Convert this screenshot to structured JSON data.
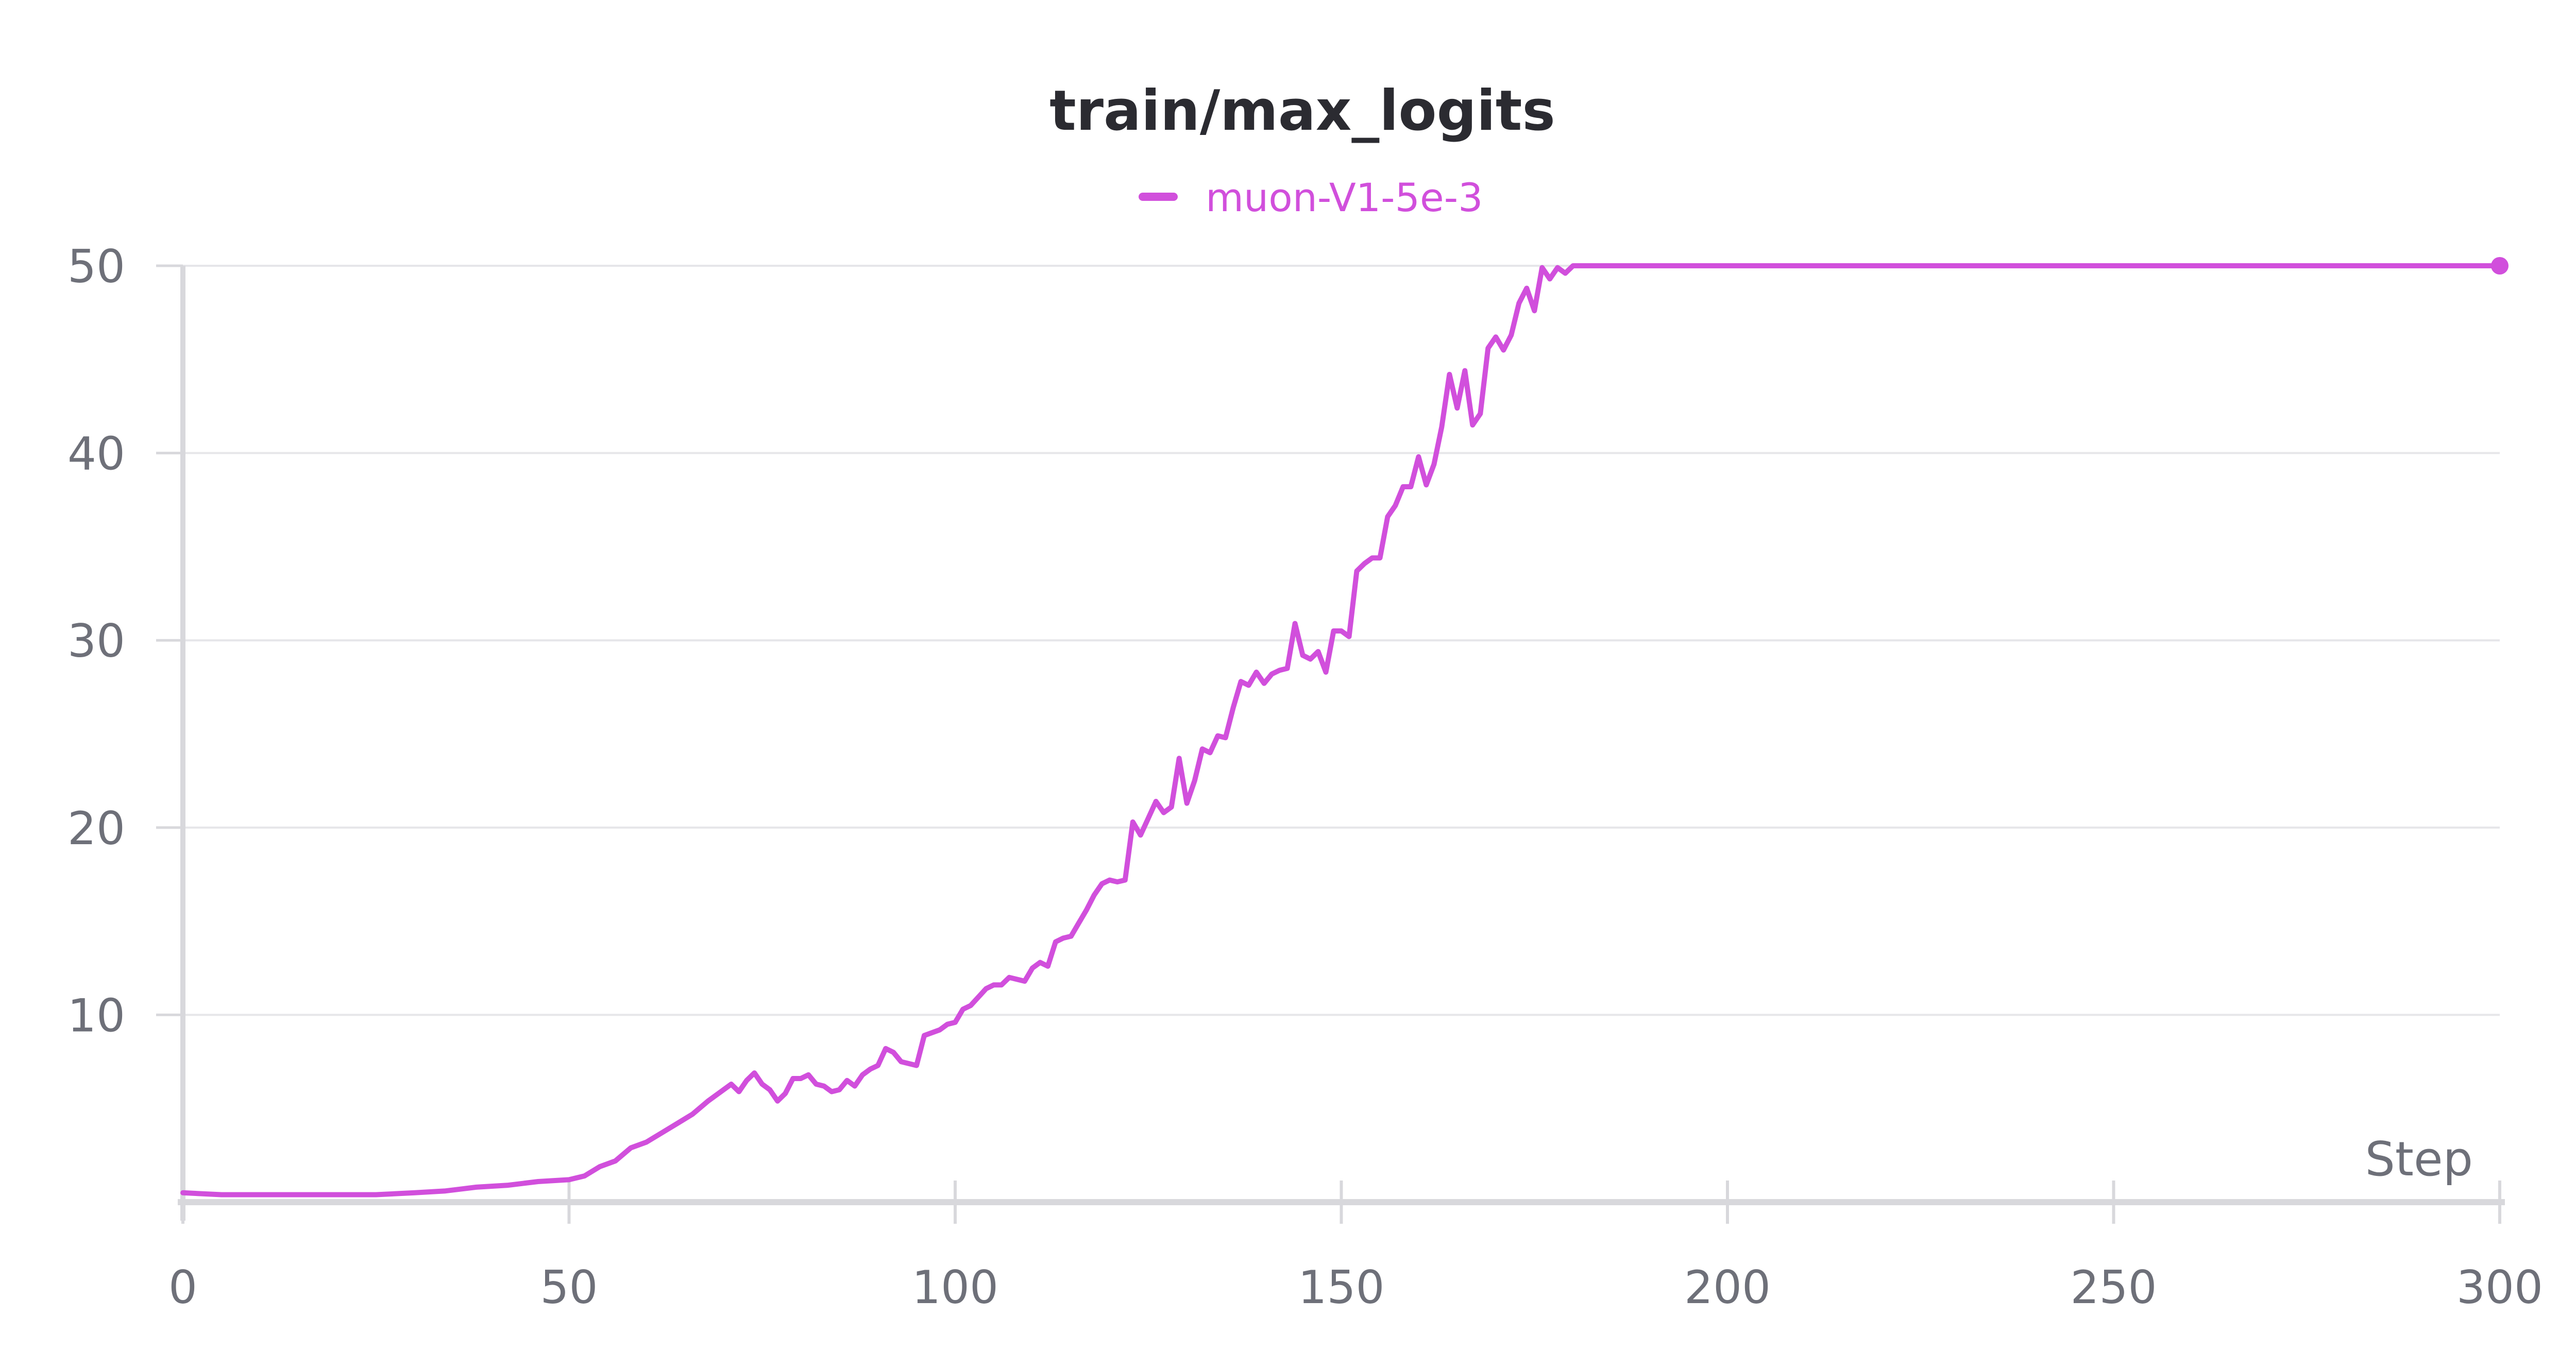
{
  "chart_data": {
    "type": "line",
    "title": "train/max_logits",
    "xlabel": "Step",
    "ylabel": "",
    "xlim": [
      0,
      300
    ],
    "ylim": [
      0,
      50
    ],
    "x_ticks": [
      "0",
      "50",
      "100",
      "150",
      "200",
      "250",
      "300"
    ],
    "y_ticks": [
      "10",
      "20",
      "30",
      "40",
      "50"
    ],
    "grid": "horizontal",
    "legend_position": "top-center",
    "colors": {
      "series": "#d14fdc",
      "grid": "#e6e6e9",
      "axis": "#d8d8dc",
      "text": "#6e7079",
      "title": "#2b2b31"
    },
    "series": [
      {
        "name": "muon-V1-5e-3",
        "points": [
          [
            0,
            0.5
          ],
          [
            5,
            0.4
          ],
          [
            10,
            0.4
          ],
          [
            15,
            0.4
          ],
          [
            20,
            0.4
          ],
          [
            25,
            0.4
          ],
          [
            30,
            0.5
          ],
          [
            34,
            0.6
          ],
          [
            38,
            0.8
          ],
          [
            42,
            0.9
          ],
          [
            46,
            1.1
          ],
          [
            50,
            1.2
          ],
          [
            52,
            1.4
          ],
          [
            54,
            1.9
          ],
          [
            56,
            2.2
          ],
          [
            58,
            2.9
          ],
          [
            60,
            3.2
          ],
          [
            62,
            3.7
          ],
          [
            64,
            4.2
          ],
          [
            66,
            4.7
          ],
          [
            68,
            5.4
          ],
          [
            70,
            6.0
          ],
          [
            71,
            6.3
          ],
          [
            72,
            5.9
          ],
          [
            73,
            6.5
          ],
          [
            74,
            6.9
          ],
          [
            75,
            6.3
          ],
          [
            76,
            6.0
          ],
          [
            77,
            5.4
          ],
          [
            78,
            5.8
          ],
          [
            79,
            6.6
          ],
          [
            80,
            6.6
          ],
          [
            81,
            6.8
          ],
          [
            82,
            6.3
          ],
          [
            83,
            6.2
          ],
          [
            84,
            5.9
          ],
          [
            85,
            6.0
          ],
          [
            86,
            6.5
          ],
          [
            87,
            6.2
          ],
          [
            88,
            6.8
          ],
          [
            89,
            7.1
          ],
          [
            90,
            7.3
          ],
          [
            91,
            8.2
          ],
          [
            92,
            8.0
          ],
          [
            93,
            7.5
          ],
          [
            95,
            7.3
          ],
          [
            96,
            8.9
          ],
          [
            98,
            9.2
          ],
          [
            99,
            9.5
          ],
          [
            100,
            9.6
          ],
          [
            101,
            10.3
          ],
          [
            102,
            10.5
          ],
          [
            104,
            11.4
          ],
          [
            105,
            11.6
          ],
          [
            106,
            11.6
          ],
          [
            107,
            12.0
          ],
          [
            109,
            11.8
          ],
          [
            110,
            12.5
          ],
          [
            111,
            12.8
          ],
          [
            112,
            12.6
          ],
          [
            113,
            13.9
          ],
          [
            114,
            14.1
          ],
          [
            115,
            14.2
          ],
          [
            116,
            14.9
          ],
          [
            117,
            15.6
          ],
          [
            118,
            16.4
          ],
          [
            119,
            17.0
          ],
          [
            120,
            17.2
          ],
          [
            121,
            17.1
          ],
          [
            122,
            17.2
          ],
          [
            123,
            20.3
          ],
          [
            124,
            19.6
          ],
          [
            125,
            20.5
          ],
          [
            126,
            21.4
          ],
          [
            127,
            20.8
          ],
          [
            128,
            21.1
          ],
          [
            129,
            23.7
          ],
          [
            130,
            21.3
          ],
          [
            131,
            22.5
          ],
          [
            132,
            24.2
          ],
          [
            133,
            24.0
          ],
          [
            134,
            24.9
          ],
          [
            135,
            24.8
          ],
          [
            136,
            26.4
          ],
          [
            137,
            27.8
          ],
          [
            138,
            27.6
          ],
          [
            139,
            28.3
          ],
          [
            140,
            27.7
          ],
          [
            141,
            28.2
          ],
          [
            142,
            28.4
          ],
          [
            143,
            28.5
          ],
          [
            144,
            30.9
          ],
          [
            145,
            29.2
          ],
          [
            146,
            29.0
          ],
          [
            147,
            29.4
          ],
          [
            148,
            28.3
          ],
          [
            149,
            30.5
          ],
          [
            150,
            30.5
          ],
          [
            151,
            30.2
          ],
          [
            152,
            33.7
          ],
          [
            153,
            34.1
          ],
          [
            154,
            34.4
          ],
          [
            155,
            34.4
          ],
          [
            156,
            36.6
          ],
          [
            157,
            37.2
          ],
          [
            158,
            38.2
          ],
          [
            159,
            38.2
          ],
          [
            160,
            39.8
          ],
          [
            161,
            38.3
          ],
          [
            162,
            39.4
          ],
          [
            163,
            41.4
          ],
          [
            164,
            44.2
          ],
          [
            165,
            42.4
          ],
          [
            166,
            44.4
          ],
          [
            167,
            41.5
          ],
          [
            168,
            42.1
          ],
          [
            169,
            45.6
          ],
          [
            170,
            46.2
          ],
          [
            171,
            45.5
          ],
          [
            172,
            46.3
          ],
          [
            173,
            48.0
          ],
          [
            174,
            48.8
          ],
          [
            175,
            47.6
          ],
          [
            176,
            49.9
          ],
          [
            177,
            49.3
          ],
          [
            178,
            49.9
          ],
          [
            179,
            49.6
          ],
          [
            180,
            50.0
          ],
          [
            190,
            50.0
          ],
          [
            200,
            50.0
          ],
          [
            250,
            50.0
          ],
          [
            300,
            50.0
          ]
        ]
      }
    ]
  }
}
